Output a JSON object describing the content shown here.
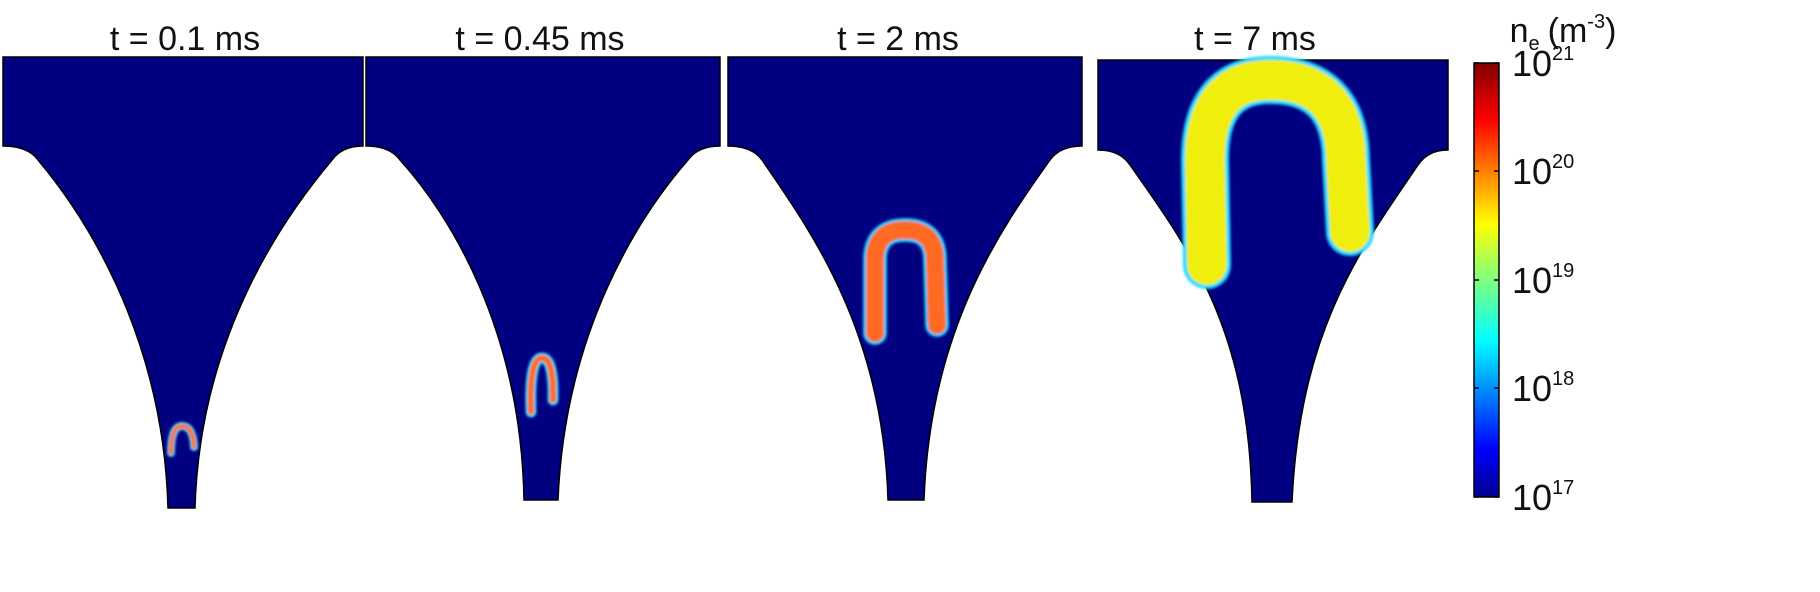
{
  "figure": {
    "panels": [
      {
        "title": "t = 0.1 ms"
      },
      {
        "title": "t = 0.45 ms"
      },
      {
        "title": "t = 2 ms"
      },
      {
        "title": "t = 7 ms"
      }
    ],
    "colorbar": {
      "quantity": "n",
      "quantity_sub": "e",
      "unit_open": "(m",
      "unit_exp": "-3",
      "unit_close": ")",
      "ticks": [
        {
          "base": "10",
          "exp": "21"
        },
        {
          "base": "10",
          "exp": "20"
        },
        {
          "base": "10",
          "exp": "19"
        },
        {
          "base": "10",
          "exp": "18"
        },
        {
          "base": "10",
          "exp": "17"
        }
      ],
      "colormap": "jet",
      "scale": "log"
    },
    "colors": {
      "background": "#000080",
      "plasma_core": "#ff7020",
      "plasma_late": "#f0f000"
    }
  }
}
